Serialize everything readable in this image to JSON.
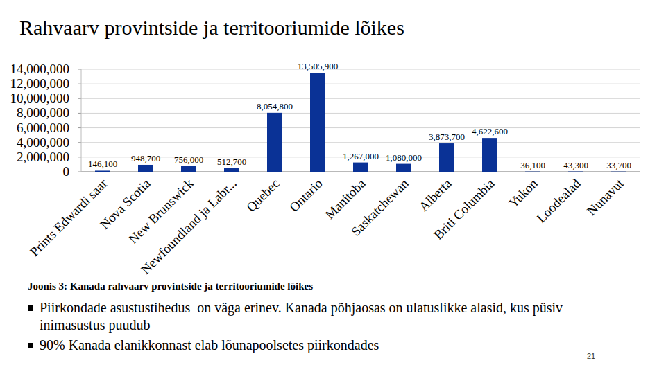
{
  "chart_data": {
    "type": "bar",
    "title": "Rahvaarv provintside ja territooriumide lõikes",
    "categories": [
      "Prints Edwardi saar",
      "Nova Scotia",
      "New Brunswick",
      "Newfoundland ja Labr...",
      "Quebec",
      "Ontario",
      "Manitoba",
      "Saskatchewan",
      "Alberta",
      "Briti Columbia",
      "Yukon",
      "Loodealad",
      "Nunavut"
    ],
    "values": [
      146100,
      948700,
      756000,
      512700,
      8054800,
      13505900,
      1267000,
      1080000,
      3873700,
      4622600,
      36100,
      43300,
      33700
    ],
    "value_labels": [
      "146,100",
      "948,700",
      "756,000",
      "512,700",
      "8,054,800",
      "13,505,900",
      "1,267,000",
      "1,080,000",
      "3,873,700",
      "4,622,600",
      "36,100",
      "43,300",
      "33,700"
    ],
    "color": "#0a3296",
    "ylim": [
      0,
      14000000
    ],
    "yticks": [
      0,
      {
        "value": 2000000,
        "label": "2,000,000"
      },
      {
        "value": 4000000,
        "label": "4,000,000"
      },
      {
        "value": 6000000,
        "label": "6,000,000"
      },
      {
        "value": 8000000,
        "label": "8,000,000"
      },
      {
        "value": 10000000,
        "label": "10,000,000"
      },
      {
        "value": 12000000,
        "label": "12,000,000"
      },
      {
        "value": 14000000,
        "label": "14,000,000"
      }
    ],
    "grid": true,
    "data_labels": true
  },
  "caption": "Joonis 3: Kanada rahvaarv provintside ja territooriumide lõikes",
  "bullets": [
    "Piirkondade asustustihedus  on väga erinev. Kanada põhjaosas on ulatuslikke alasid, kus püsiv inimasustus puudub",
    "90% Kanada elanikkonnast elab lõunapoolsetes piirkondades"
  ],
  "page_number": 21
}
